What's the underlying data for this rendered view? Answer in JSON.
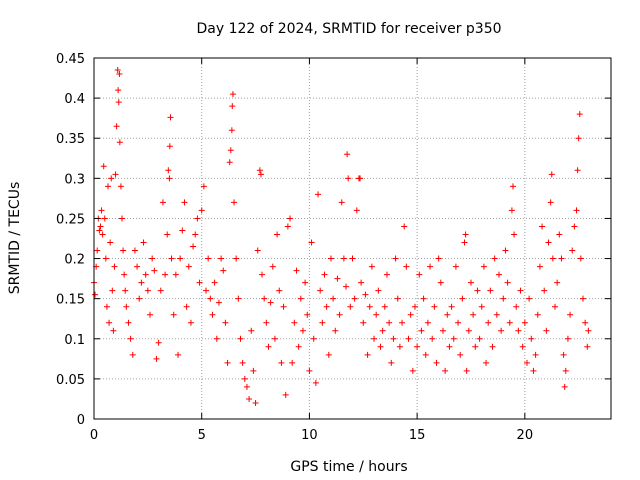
{
  "chart_data": {
    "type": "scatter",
    "title": "Day 122 of 2024, SRMTID for receiver p350",
    "xlabel": "GPS time / hours",
    "ylabel": "SRMTID / TECUs",
    "xlim": [
      0,
      24.0
    ],
    "ylim": [
      0,
      0.45
    ],
    "xticks": [
      0,
      5,
      10,
      15,
      20
    ],
    "xtick_labels": [
      "0",
      "5",
      "10",
      "15",
      "20"
    ],
    "yticks": [
      0,
      0.05,
      0.1,
      0.15,
      0.2,
      0.25,
      0.3,
      0.35,
      0.4,
      0.45
    ],
    "ytick_labels": [
      "0",
      "0.05",
      "0.1",
      "0.15",
      "0.2",
      "0.25",
      "0.3",
      "0.35",
      "0.4",
      "0.45"
    ],
    "grid": true,
    "marker": "+",
    "color": "#ff0000",
    "series": [
      {
        "name": "SRMTID",
        "points": [
          [
            0.0,
            0.17
          ],
          [
            0.05,
            0.155
          ],
          [
            0.1,
            0.19
          ],
          [
            0.15,
            0.21
          ],
          [
            0.2,
            0.25
          ],
          [
            0.25,
            0.235
          ],
          [
            0.3,
            0.24
          ],
          [
            0.35,
            0.26
          ],
          [
            0.4,
            0.23
          ],
          [
            0.45,
            0.315
          ],
          [
            0.5,
            0.25
          ],
          [
            0.55,
            0.2
          ],
          [
            0.6,
            0.14
          ],
          [
            0.65,
            0.29
          ],
          [
            0.7,
            0.12
          ],
          [
            0.75,
            0.22
          ],
          [
            0.8,
            0.3
          ],
          [
            0.85,
            0.16
          ],
          [
            0.9,
            0.11
          ],
          [
            0.95,
            0.19
          ],
          [
            1.0,
            0.305
          ],
          [
            1.05,
            0.365
          ],
          [
            1.1,
            0.435
          ],
          [
            1.12,
            0.41
          ],
          [
            1.15,
            0.395
          ],
          [
            1.18,
            0.43
          ],
          [
            1.2,
            0.345
          ],
          [
            1.25,
            0.29
          ],
          [
            1.3,
            0.25
          ],
          [
            1.35,
            0.21
          ],
          [
            1.4,
            0.18
          ],
          [
            1.45,
            0.16
          ],
          [
            1.5,
            0.14
          ],
          [
            1.6,
            0.12
          ],
          [
            1.7,
            0.1
          ],
          [
            1.8,
            0.08
          ],
          [
            1.9,
            0.21
          ],
          [
            2.0,
            0.19
          ],
          [
            2.1,
            0.15
          ],
          [
            2.2,
            0.17
          ],
          [
            2.3,
            0.22
          ],
          [
            2.4,
            0.18
          ],
          [
            2.5,
            0.16
          ],
          [
            2.6,
            0.13
          ],
          [
            2.7,
            0.2
          ],
          [
            2.8,
            0.185
          ],
          [
            2.9,
            0.075
          ],
          [
            3.0,
            0.095
          ],
          [
            3.1,
            0.16
          ],
          [
            3.2,
            0.27
          ],
          [
            3.3,
            0.18
          ],
          [
            3.4,
            0.23
          ],
          [
            3.45,
            0.31
          ],
          [
            3.5,
            0.3
          ],
          [
            3.52,
            0.34
          ],
          [
            3.55,
            0.376
          ],
          [
            3.6,
            0.2
          ],
          [
            3.7,
            0.13
          ],
          [
            3.8,
            0.18
          ],
          [
            3.9,
            0.08
          ],
          [
            4.0,
            0.2
          ],
          [
            4.1,
            0.235
          ],
          [
            4.2,
            0.27
          ],
          [
            4.3,
            0.14
          ],
          [
            4.4,
            0.19
          ],
          [
            4.5,
            0.12
          ],
          [
            4.6,
            0.215
          ],
          [
            4.7,
            0.23
          ],
          [
            4.8,
            0.25
          ],
          [
            4.9,
            0.17
          ],
          [
            5.0,
            0.26
          ],
          [
            5.1,
            0.29
          ],
          [
            5.2,
            0.16
          ],
          [
            5.3,
            0.2
          ],
          [
            5.4,
            0.15
          ],
          [
            5.5,
            0.13
          ],
          [
            5.6,
            0.17
          ],
          [
            5.7,
            0.1
          ],
          [
            5.8,
            0.145
          ],
          [
            5.9,
            0.2
          ],
          [
            6.0,
            0.185
          ],
          [
            6.1,
            0.12
          ],
          [
            6.2,
            0.07
          ],
          [
            6.3,
            0.32
          ],
          [
            6.35,
            0.335
          ],
          [
            6.4,
            0.36
          ],
          [
            6.42,
            0.39
          ],
          [
            6.45,
            0.405
          ],
          [
            6.5,
            0.27
          ],
          [
            6.6,
            0.2
          ],
          [
            6.7,
            0.15
          ],
          [
            6.8,
            0.1
          ],
          [
            6.9,
            0.07
          ],
          [
            7.0,
            0.05
          ],
          [
            7.1,
            0.04
          ],
          [
            7.2,
            0.025
          ],
          [
            7.3,
            0.11
          ],
          [
            7.4,
            0.06
          ],
          [
            7.5,
            0.02
          ],
          [
            7.6,
            0.21
          ],
          [
            7.7,
            0.31
          ],
          [
            7.75,
            0.305
          ],
          [
            7.8,
            0.18
          ],
          [
            7.9,
            0.15
          ],
          [
            8.0,
            0.12
          ],
          [
            8.1,
            0.09
          ],
          [
            8.2,
            0.145
          ],
          [
            8.3,
            0.19
          ],
          [
            8.4,
            0.1
          ],
          [
            8.5,
            0.23
          ],
          [
            8.6,
            0.16
          ],
          [
            8.7,
            0.07
          ],
          [
            8.8,
            0.14
          ],
          [
            8.9,
            0.03
          ],
          [
            9.0,
            0.24
          ],
          [
            9.1,
            0.25
          ],
          [
            9.2,
            0.07
          ],
          [
            9.3,
            0.12
          ],
          [
            9.4,
            0.185
          ],
          [
            9.5,
            0.09
          ],
          [
            9.6,
            0.15
          ],
          [
            9.7,
            0.11
          ],
          [
            9.8,
            0.17
          ],
          [
            9.9,
            0.13
          ],
          [
            10.0,
            0.06
          ],
          [
            10.1,
            0.22
          ],
          [
            10.2,
            0.1
          ],
          [
            10.3,
            0.045
          ],
          [
            10.4,
            0.28
          ],
          [
            10.5,
            0.16
          ],
          [
            10.6,
            0.12
          ],
          [
            10.7,
            0.18
          ],
          [
            10.8,
            0.14
          ],
          [
            10.9,
            0.08
          ],
          [
            11.0,
            0.2
          ],
          [
            11.1,
            0.15
          ],
          [
            11.2,
            0.11
          ],
          [
            11.3,
            0.175
          ],
          [
            11.4,
            0.13
          ],
          [
            11.5,
            0.27
          ],
          [
            11.6,
            0.2
          ],
          [
            11.7,
            0.165
          ],
          [
            11.75,
            0.33
          ],
          [
            11.8,
            0.3
          ],
          [
            11.9,
            0.14
          ],
          [
            12.0,
            0.2
          ],
          [
            12.1,
            0.15
          ],
          [
            12.2,
            0.26
          ],
          [
            12.3,
            0.3
          ],
          [
            12.35,
            0.3
          ],
          [
            12.4,
            0.17
          ],
          [
            12.5,
            0.12
          ],
          [
            12.6,
            0.155
          ],
          [
            12.7,
            0.08
          ],
          [
            12.8,
            0.14
          ],
          [
            12.9,
            0.19
          ],
          [
            13.0,
            0.1
          ],
          [
            13.1,
            0.13
          ],
          [
            13.2,
            0.16
          ],
          [
            13.3,
            0.09
          ],
          [
            13.4,
            0.11
          ],
          [
            13.5,
            0.14
          ],
          [
            13.6,
            0.18
          ],
          [
            13.7,
            0.12
          ],
          [
            13.8,
            0.07
          ],
          [
            13.9,
            0.1
          ],
          [
            14.0,
            0.2
          ],
          [
            14.1,
            0.15
          ],
          [
            14.2,
            0.09
          ],
          [
            14.3,
            0.12
          ],
          [
            14.4,
            0.24
          ],
          [
            14.5,
            0.19
          ],
          [
            14.6,
            0.1
          ],
          [
            14.7,
            0.13
          ],
          [
            14.8,
            0.06
          ],
          [
            14.9,
            0.14
          ],
          [
            15.0,
            0.09
          ],
          [
            15.1,
            0.18
          ],
          [
            15.2,
            0.11
          ],
          [
            15.3,
            0.15
          ],
          [
            15.4,
            0.08
          ],
          [
            15.5,
            0.12
          ],
          [
            15.6,
            0.19
          ],
          [
            15.7,
            0.1
          ],
          [
            15.8,
            0.14
          ],
          [
            15.9,
            0.07
          ],
          [
            16.0,
            0.2
          ],
          [
            16.1,
            0.17
          ],
          [
            16.2,
            0.11
          ],
          [
            16.3,
            0.06
          ],
          [
            16.4,
            0.13
          ],
          [
            16.5,
            0.09
          ],
          [
            16.6,
            0.14
          ],
          [
            16.7,
            0.1
          ],
          [
            16.8,
            0.19
          ],
          [
            16.9,
            0.12
          ],
          [
            17.0,
            0.08
          ],
          [
            17.1,
            0.15
          ],
          [
            17.2,
            0.22
          ],
          [
            17.25,
            0.23
          ],
          [
            17.3,
            0.06
          ],
          [
            17.4,
            0.11
          ],
          [
            17.5,
            0.17
          ],
          [
            17.6,
            0.13
          ],
          [
            17.7,
            0.09
          ],
          [
            17.8,
            0.16
          ],
          [
            17.9,
            0.1
          ],
          [
            18.0,
            0.14
          ],
          [
            18.1,
            0.19
          ],
          [
            18.2,
            0.07
          ],
          [
            18.3,
            0.12
          ],
          [
            18.4,
            0.16
          ],
          [
            18.5,
            0.09
          ],
          [
            18.6,
            0.2
          ],
          [
            18.7,
            0.13
          ],
          [
            18.8,
            0.18
          ],
          [
            18.9,
            0.11
          ],
          [
            19.0,
            0.15
          ],
          [
            19.1,
            0.21
          ],
          [
            19.2,
            0.17
          ],
          [
            19.3,
            0.12
          ],
          [
            19.4,
            0.26
          ],
          [
            19.45,
            0.29
          ],
          [
            19.5,
            0.23
          ],
          [
            19.6,
            0.14
          ],
          [
            19.7,
            0.11
          ],
          [
            19.8,
            0.16
          ],
          [
            19.9,
            0.09
          ],
          [
            20.0,
            0.12
          ],
          [
            20.1,
            0.07
          ],
          [
            20.2,
            0.15
          ],
          [
            20.3,
            0.1
          ],
          [
            20.4,
            0.06
          ],
          [
            20.5,
            0.08
          ],
          [
            20.6,
            0.13
          ],
          [
            20.7,
            0.19
          ],
          [
            20.8,
            0.24
          ],
          [
            20.9,
            0.16
          ],
          [
            21.0,
            0.11
          ],
          [
            21.1,
            0.22
          ],
          [
            21.2,
            0.27
          ],
          [
            21.25,
            0.305
          ],
          [
            21.3,
            0.2
          ],
          [
            21.4,
            0.14
          ],
          [
            21.5,
            0.17
          ],
          [
            21.6,
            0.23
          ],
          [
            21.7,
            0.2
          ],
          [
            21.8,
            0.08
          ],
          [
            21.85,
            0.04
          ],
          [
            21.9,
            0.06
          ],
          [
            22.0,
            0.1
          ],
          [
            22.1,
            0.13
          ],
          [
            22.2,
            0.21
          ],
          [
            22.3,
            0.24
          ],
          [
            22.4,
            0.26
          ],
          [
            22.45,
            0.31
          ],
          [
            22.5,
            0.35
          ],
          [
            22.55,
            0.38
          ],
          [
            22.6,
            0.2
          ],
          [
            22.7,
            0.15
          ],
          [
            22.8,
            0.12
          ],
          [
            22.9,
            0.09
          ],
          [
            22.95,
            0.11
          ]
        ]
      }
    ]
  }
}
